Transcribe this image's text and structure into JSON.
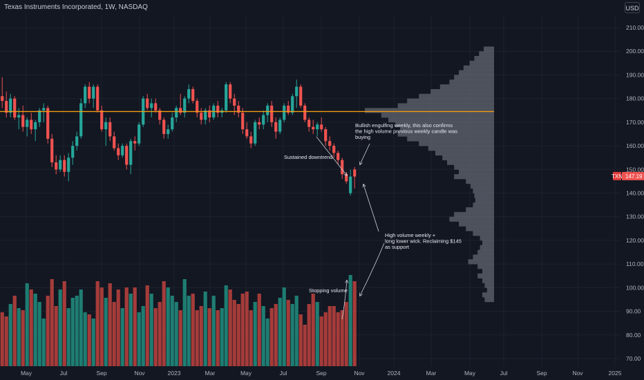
{
  "header": {
    "title": "Texas Instruments Incorporated, 1W, NASDAQ",
    "currency": "USD"
  },
  "colors": {
    "background": "#131722",
    "up": "#26a69a",
    "down": "#ef5350",
    "volume_up": "#1f7d72",
    "volume_down": "#a53c3a",
    "profile": "#5d606b",
    "support_line": "#f39c12",
    "annotation": "#d1d4dc"
  },
  "chart_data": {
    "type": "candlestick",
    "symbol": "TXN",
    "interval": "1W",
    "exchange": "NASDAQ",
    "ylim": [
      68,
      216
    ],
    "y_ticks": [
      70,
      80,
      90,
      100,
      110,
      120,
      130,
      140,
      150,
      160,
      170,
      180,
      190,
      200,
      210
    ],
    "x_tick_labels": [
      "May",
      "Jul",
      "Sep",
      "Nov",
      "2023",
      "Mar",
      "May",
      "Jul",
      "Sep",
      "Nov",
      "2024",
      "Mar",
      "May",
      "Jul",
      "Sep",
      "Nov",
      "2025"
    ],
    "last_price": {
      "symbol": "TXN",
      "value": "147.19"
    },
    "support_level": 174.5,
    "candles": [
      {
        "o": 181,
        "h": 189,
        "l": 176,
        "c": 179
      },
      {
        "o": 179,
        "h": 183,
        "l": 172,
        "c": 174
      },
      {
        "o": 174,
        "h": 182,
        "l": 172,
        "c": 180
      },
      {
        "o": 180,
        "h": 181,
        "l": 171,
        "c": 172
      },
      {
        "o": 172,
        "h": 176,
        "l": 167,
        "c": 173
      },
      {
        "o": 173,
        "h": 177,
        "l": 166,
        "c": 168
      },
      {
        "o": 168,
        "h": 172,
        "l": 164,
        "c": 171
      },
      {
        "o": 171,
        "h": 174,
        "l": 165,
        "c": 167
      },
      {
        "o": 167,
        "h": 171,
        "l": 162,
        "c": 170
      },
      {
        "o": 170,
        "h": 176,
        "l": 168,
        "c": 175
      },
      {
        "o": 175,
        "h": 178,
        "l": 170,
        "c": 176
      },
      {
        "o": 176,
        "h": 177,
        "l": 161,
        "c": 163
      },
      {
        "o": 163,
        "h": 165,
        "l": 151,
        "c": 153
      },
      {
        "o": 153,
        "h": 156,
        "l": 148,
        "c": 150
      },
      {
        "o": 150,
        "h": 156,
        "l": 149,
        "c": 154
      },
      {
        "o": 154,
        "h": 156,
        "l": 147,
        "c": 149
      },
      {
        "o": 149,
        "h": 157,
        "l": 145,
        "c": 155
      },
      {
        "o": 155,
        "h": 162,
        "l": 152,
        "c": 160
      },
      {
        "o": 160,
        "h": 166,
        "l": 158,
        "c": 164
      },
      {
        "o": 164,
        "h": 180,
        "l": 163,
        "c": 178
      },
      {
        "o": 178,
        "h": 186,
        "l": 176,
        "c": 185
      },
      {
        "o": 185,
        "h": 187,
        "l": 178,
        "c": 180
      },
      {
        "o": 180,
        "h": 186,
        "l": 176,
        "c": 185
      },
      {
        "o": 185,
        "h": 186,
        "l": 174,
        "c": 175
      },
      {
        "o": 175,
        "h": 177,
        "l": 166,
        "c": 167
      },
      {
        "o": 167,
        "h": 172,
        "l": 160,
        "c": 170
      },
      {
        "o": 170,
        "h": 172,
        "l": 162,
        "c": 164
      },
      {
        "o": 164,
        "h": 166,
        "l": 158,
        "c": 159
      },
      {
        "o": 159,
        "h": 161,
        "l": 154,
        "c": 156
      },
      {
        "o": 156,
        "h": 161,
        "l": 155,
        "c": 160
      },
      {
        "o": 160,
        "h": 161,
        "l": 150,
        "c": 152
      },
      {
        "o": 152,
        "h": 163,
        "l": 148,
        "c": 162
      },
      {
        "o": 162,
        "h": 164,
        "l": 158,
        "c": 161
      },
      {
        "o": 161,
        "h": 170,
        "l": 160,
        "c": 169
      },
      {
        "o": 169,
        "h": 181,
        "l": 168,
        "c": 180
      },
      {
        "o": 180,
        "h": 182,
        "l": 175,
        "c": 176
      },
      {
        "o": 176,
        "h": 180,
        "l": 172,
        "c": 178
      },
      {
        "o": 178,
        "h": 180,
        "l": 174,
        "c": 175
      },
      {
        "o": 175,
        "h": 176,
        "l": 169,
        "c": 171
      },
      {
        "o": 171,
        "h": 172,
        "l": 163,
        "c": 165
      },
      {
        "o": 165,
        "h": 169,
        "l": 163,
        "c": 167
      },
      {
        "o": 167,
        "h": 174,
        "l": 166,
        "c": 172
      },
      {
        "o": 172,
        "h": 177,
        "l": 170,
        "c": 176
      },
      {
        "o": 176,
        "h": 182,
        "l": 173,
        "c": 174
      },
      {
        "o": 174,
        "h": 181,
        "l": 172,
        "c": 180
      },
      {
        "o": 180,
        "h": 186,
        "l": 178,
        "c": 184
      },
      {
        "o": 184,
        "h": 185,
        "l": 178,
        "c": 179
      },
      {
        "o": 179,
        "h": 180,
        "l": 172,
        "c": 174
      },
      {
        "o": 174,
        "h": 176,
        "l": 169,
        "c": 171
      },
      {
        "o": 171,
        "h": 176,
        "l": 169,
        "c": 175
      },
      {
        "o": 175,
        "h": 177,
        "l": 170,
        "c": 172
      },
      {
        "o": 172,
        "h": 178,
        "l": 171,
        "c": 177
      },
      {
        "o": 177,
        "h": 179,
        "l": 172,
        "c": 174
      },
      {
        "o": 174,
        "h": 176,
        "l": 172,
        "c": 175
      },
      {
        "o": 175,
        "h": 187,
        "l": 174,
        "c": 186
      },
      {
        "o": 186,
        "h": 187,
        "l": 178,
        "c": 180
      },
      {
        "o": 180,
        "h": 182,
        "l": 173,
        "c": 177
      },
      {
        "o": 177,
        "h": 179,
        "l": 172,
        "c": 174
      },
      {
        "o": 174,
        "h": 176,
        "l": 165,
        "c": 167
      },
      {
        "o": 167,
        "h": 170,
        "l": 163,
        "c": 164
      },
      {
        "o": 164,
        "h": 166,
        "l": 159,
        "c": 161
      },
      {
        "o": 161,
        "h": 171,
        "l": 160,
        "c": 170
      },
      {
        "o": 170,
        "h": 172,
        "l": 167,
        "c": 169
      },
      {
        "o": 169,
        "h": 175,
        "l": 167,
        "c": 173
      },
      {
        "o": 173,
        "h": 178,
        "l": 170,
        "c": 177
      },
      {
        "o": 177,
        "h": 179,
        "l": 168,
        "c": 170
      },
      {
        "o": 170,
        "h": 172,
        "l": 163,
        "c": 166
      },
      {
        "o": 166,
        "h": 172,
        "l": 165,
        "c": 171
      },
      {
        "o": 171,
        "h": 178,
        "l": 170,
        "c": 177
      },
      {
        "o": 177,
        "h": 179,
        "l": 173,
        "c": 174
      },
      {
        "o": 174,
        "h": 182,
        "l": 173,
        "c": 181
      },
      {
        "o": 181,
        "h": 188,
        "l": 176,
        "c": 185
      },
      {
        "o": 185,
        "h": 186,
        "l": 176,
        "c": 177
      },
      {
        "o": 177,
        "h": 178,
        "l": 170,
        "c": 171
      },
      {
        "o": 171,
        "h": 172,
        "l": 166,
        "c": 168
      },
      {
        "o": 168,
        "h": 171,
        "l": 165,
        "c": 167
      },
      {
        "o": 167,
        "h": 170,
        "l": 164,
        "c": 169
      },
      {
        "o": 169,
        "h": 172,
        "l": 166,
        "c": 167
      },
      {
        "o": 167,
        "h": 168,
        "l": 160,
        "c": 162
      },
      {
        "o": 162,
        "h": 164,
        "l": 158,
        "c": 160
      },
      {
        "o": 160,
        "h": 161,
        "l": 155,
        "c": 157
      },
      {
        "o": 157,
        "h": 158,
        "l": 152,
        "c": 154
      },
      {
        "o": 154,
        "h": 155,
        "l": 146,
        "c": 148
      },
      {
        "o": 148,
        "h": 149,
        "l": 144,
        "c": 145
      },
      {
        "o": 140,
        "h": 150,
        "l": 139,
        "c": 147
      },
      {
        "o": 150,
        "h": 151,
        "l": 142,
        "c": 147
      }
    ],
    "volumes": [
      86,
      84,
      90,
      94,
      88,
      87,
      100,
      97,
      95,
      91,
      83,
      94,
      102,
      89,
      97,
      101,
      88,
      93,
      94,
      97,
      86,
      85,
      83,
      101,
      98,
      93,
      100,
      91,
      97,
      88,
      98,
      95,
      98,
      86,
      89,
      99,
      95,
      88,
      91,
      101,
      98,
      94,
      91,
      87,
      102,
      94,
      95,
      87,
      89,
      96,
      88,
      94,
      87,
      88,
      99,
      97,
      92,
      90,
      95,
      96,
      87,
      91,
      95,
      89,
      83,
      88,
      90,
      93,
      98,
      92,
      90,
      94,
      85,
      80,
      90,
      95,
      91,
      84,
      86,
      89,
      89,
      86,
      87,
      91,
      104,
      101
    ],
    "volume_profile": [
      [
        201,
        22
      ],
      [
        199,
        32
      ],
      [
        197,
        42
      ],
      [
        195,
        52
      ],
      [
        193,
        65
      ],
      [
        191,
        75
      ],
      [
        189,
        85
      ],
      [
        187,
        95
      ],
      [
        185,
        115
      ],
      [
        183,
        135
      ],
      [
        181,
        160
      ],
      [
        179,
        185
      ],
      [
        177,
        205
      ],
      [
        175,
        275
      ],
      [
        173,
        240
      ],
      [
        171,
        225
      ],
      [
        169,
        210
      ],
      [
        167,
        200
      ],
      [
        165,
        205
      ],
      [
        163,
        185
      ],
      [
        161,
        160
      ],
      [
        159,
        140
      ],
      [
        157,
        125
      ],
      [
        155,
        110
      ],
      [
        153,
        100
      ],
      [
        151,
        85
      ],
      [
        149,
        75
      ],
      [
        147,
        85
      ],
      [
        145,
        60
      ],
      [
        143,
        50
      ],
      [
        141,
        45
      ],
      [
        139,
        42
      ],
      [
        137,
        40
      ],
      [
        135,
        45
      ],
      [
        133,
        60
      ],
      [
        131,
        85
      ],
      [
        129,
        95
      ],
      [
        127,
        75
      ],
      [
        125,
        60
      ],
      [
        123,
        45
      ],
      [
        121,
        30
      ],
      [
        119,
        25
      ],
      [
        117,
        30
      ],
      [
        115,
        35
      ],
      [
        113,
        45
      ],
      [
        111,
        55
      ],
      [
        109,
        35
      ],
      [
        107,
        25
      ],
      [
        105,
        35
      ],
      [
        103,
        25
      ],
      [
        101,
        20
      ],
      [
        99,
        15
      ],
      [
        97,
        25
      ],
      [
        95,
        20
      ]
    ],
    "annotations": [
      {
        "id": "bullish",
        "lines": [
          "Bullish engulfing weekly, this also confirms",
          "the high volume previous weekly candle was",
          "buying"
        ]
      },
      {
        "id": "downtrend",
        "lines": [
          "Sustained downtrend"
        ]
      },
      {
        "id": "highvol",
        "lines": [
          "High volume weekly +",
          "long lower wick. Reclaiming $145",
          "as support"
        ]
      },
      {
        "id": "stopping",
        "lines": [
          "Stopping volume"
        ]
      }
    ]
  }
}
